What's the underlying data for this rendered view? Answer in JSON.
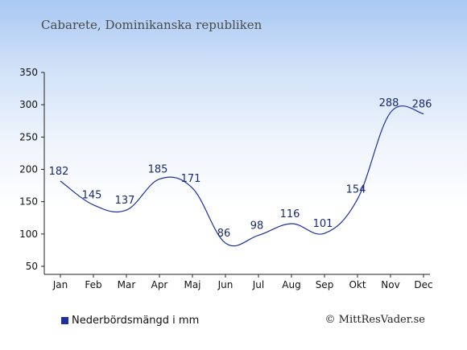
{
  "chart_data": {
    "type": "line",
    "title": "Cabarete, Dominikanska republiken",
    "categories": [
      "Jan",
      "Feb",
      "Mar",
      "Apr",
      "Maj",
      "Jun",
      "Jul",
      "Aug",
      "Sep",
      "Okt",
      "Nov",
      "Dec"
    ],
    "series": [
      {
        "name": "Nederbördsmängd i mm",
        "values": [
          182,
          145,
          137,
          185,
          171,
          86,
          98,
          116,
          101,
          154,
          288,
          286
        ],
        "color": "#1d2f9e"
      }
    ],
    "ylim": [
      50,
      350
    ],
    "yticks": [
      50,
      100,
      150,
      200,
      250,
      300,
      350
    ],
    "grid": false,
    "legend_position": "bottom-left"
  },
  "credit": "© MittResVader.se"
}
